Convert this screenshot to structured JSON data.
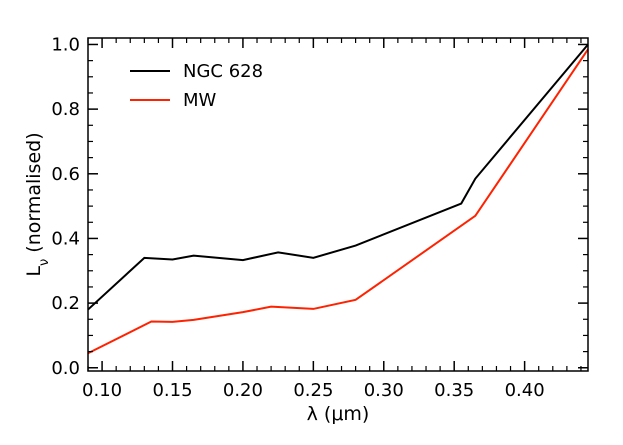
{
  "chart_data": {
    "type": "line",
    "title": "",
    "xlabel": "λ (μm)",
    "ylabel": "L_ν (normalised)",
    "ylabel_symbol": "L",
    "ylabel_subscript": "ν",
    "ylabel_suffix": " (normalised)",
    "xlim": [
      0.09,
      0.445
    ],
    "ylim": [
      -0.01,
      1.02
    ],
    "x_ticks": [
      0.1,
      0.15,
      0.2,
      0.25,
      0.3,
      0.35,
      0.4
    ],
    "x_tick_labels": [
      "0.10",
      "0.15",
      "0.20",
      "0.25",
      "0.30",
      "0.35",
      "0.40"
    ],
    "y_ticks": [
      0.0,
      0.2,
      0.4,
      0.6,
      0.8,
      1.0
    ],
    "y_tick_labels": [
      "0.0",
      "0.2",
      "0.4",
      "0.6",
      "0.8",
      "1.0"
    ],
    "grid": false,
    "legend_position": "top-left",
    "series": [
      {
        "name": "NGC 628",
        "color": "#000000",
        "x": [
          0.09,
          0.13,
          0.15,
          0.165,
          0.2,
          0.225,
          0.25,
          0.28,
          0.355,
          0.365,
          0.445
        ],
        "y": [
          0.18,
          0.34,
          0.335,
          0.347,
          0.333,
          0.357,
          0.34,
          0.378,
          0.508,
          0.585,
          1.0
        ]
      },
      {
        "name": "MW",
        "color": "#ff2200",
        "x": [
          0.09,
          0.135,
          0.15,
          0.165,
          0.2,
          0.22,
          0.25,
          0.28,
          0.365,
          0.445
        ],
        "y": [
          0.045,
          0.143,
          0.142,
          0.148,
          0.172,
          0.189,
          0.182,
          0.21,
          0.47,
          0.985
        ]
      }
    ]
  }
}
